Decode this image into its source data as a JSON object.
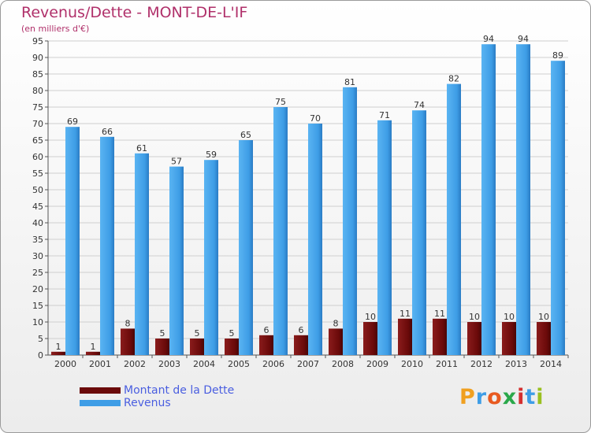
{
  "header": {
    "title": "Revenus/Dette - MONT-DE-L'IF",
    "subtitle": "(en milliers d'€)"
  },
  "colors": {
    "dette": "#6b0a0a",
    "revenus": "#3e9de6"
  },
  "legend": {
    "dette_label": "Montant de la Dette",
    "revenus_label": "Revenus"
  },
  "logo": {
    "text": "Proxiti"
  },
  "chart_data": {
    "type": "bar",
    "title": "Revenus/Dette - MONT-DE-L'IF",
    "subtitle": "(en milliers d'€)",
    "categories": [
      "2000",
      "2001",
      "2002",
      "2003",
      "2004",
      "2005",
      "2006",
      "2007",
      "2008",
      "2009",
      "2010",
      "2011",
      "2012",
      "2013",
      "2014"
    ],
    "series": [
      {
        "name": "Montant de la Dette",
        "values": [
          1,
          1,
          8,
          5,
          5,
          5,
          6,
          6,
          8,
          10,
          11,
          11,
          10,
          10,
          10
        ]
      },
      {
        "name": "Revenus",
        "values": [
          69,
          66,
          61,
          57,
          59,
          65,
          75,
          70,
          81,
          71,
          74,
          82,
          94,
          94,
          89
        ]
      }
    ],
    "ylim": [
      0,
      95
    ],
    "yticks": [
      0,
      5,
      10,
      15,
      20,
      25,
      30,
      35,
      40,
      45,
      50,
      55,
      60,
      65,
      70,
      75,
      80,
      85,
      90,
      95
    ],
    "grid": true,
    "legend_position": "bottom-left"
  }
}
